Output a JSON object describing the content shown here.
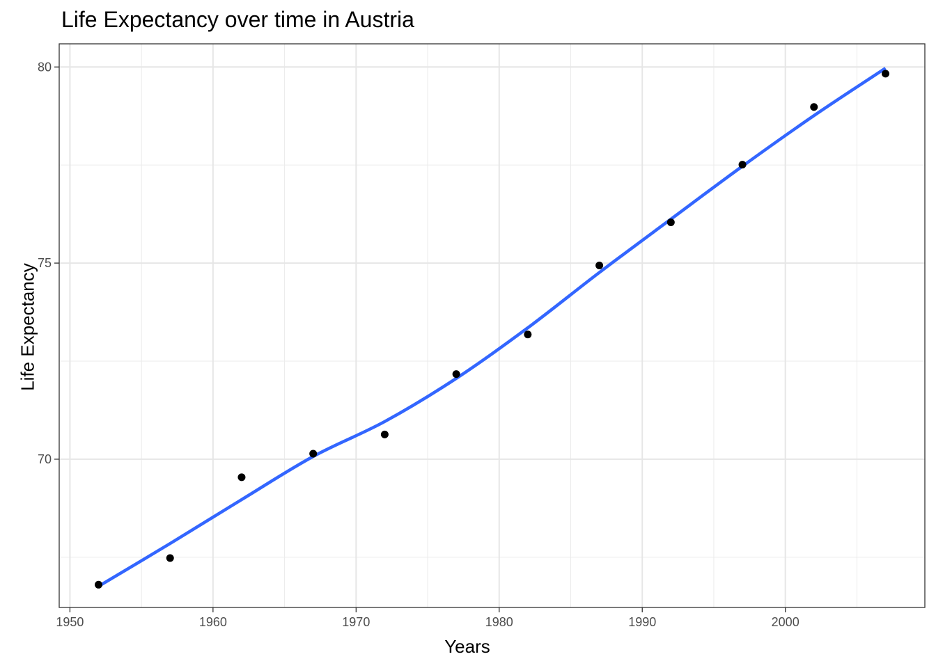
{
  "chart_data": {
    "type": "scatter",
    "title": "Life Expectancy over time in Austria",
    "xlabel": "Years",
    "ylabel": "Life Expectancy",
    "xlim": [
      1949.25,
      2009.75
    ],
    "ylim": [
      66.22,
      80.59
    ],
    "x_ticks": [
      1950,
      1960,
      1970,
      1980,
      1990,
      2000
    ],
    "y_ticks": [
      70,
      75,
      80
    ],
    "grid": true,
    "series": [
      {
        "type": "scatter",
        "color": "#000000",
        "x": [
          1952,
          1957,
          1962,
          1967,
          1972,
          1977,
          1982,
          1987,
          1992,
          1997,
          2002,
          2007
        ],
        "y": [
          66.8,
          67.48,
          69.54,
          70.14,
          70.63,
          72.17,
          73.18,
          74.94,
          76.04,
          77.51,
          78.98,
          79.83
        ]
      },
      {
        "type": "line",
        "color": "#3366FF",
        "x": [
          1952,
          1957,
          1962,
          1967,
          1972,
          1977,
          1982,
          1987,
          1992,
          1997,
          2002,
          2007
        ],
        "y": [
          66.76,
          67.85,
          68.97,
          70.07,
          70.96,
          72.06,
          73.35,
          74.76,
          76.12,
          77.47,
          78.76,
          79.97
        ]
      }
    ]
  }
}
